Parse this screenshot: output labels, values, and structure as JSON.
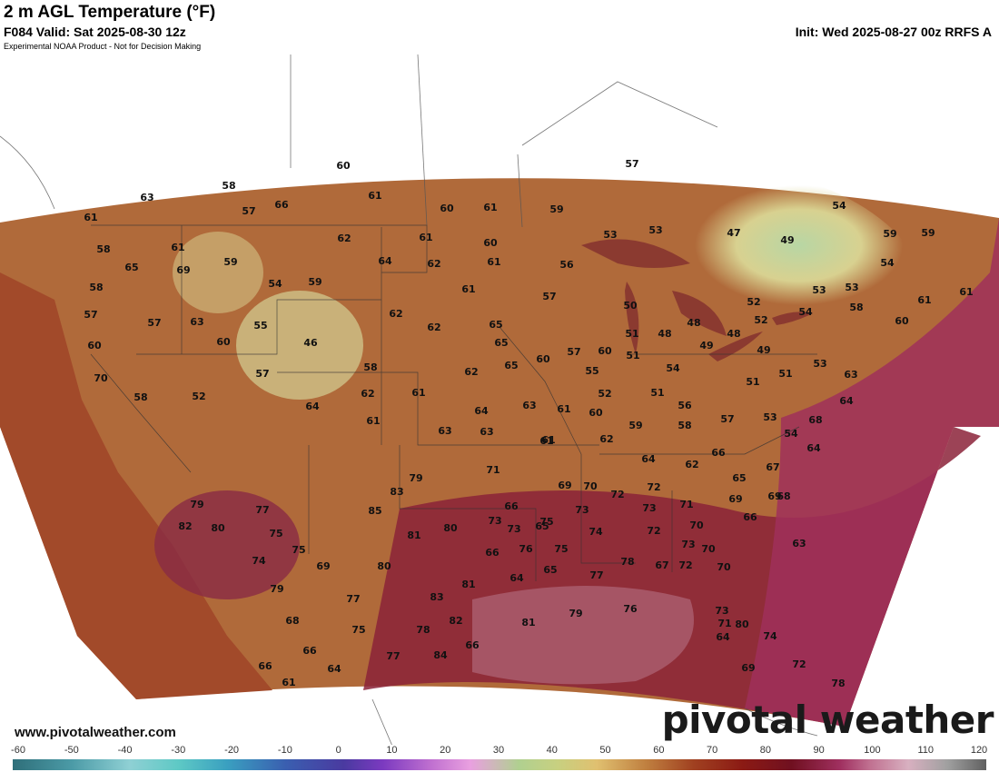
{
  "header": {
    "title": "2 m AGL Temperature (°F)",
    "valid": "F084 Valid: Sat 2025-08-30 12z",
    "init": "Init: Wed 2025-08-27 00z RRFS A",
    "disclaimer": "Experimental NOAA Product - Not for Decision Making"
  },
  "footer": {
    "url": "www.pivotalweather.com",
    "brand": "pivotal weather"
  },
  "colorbar": {
    "ticks": [
      "-60",
      "-50",
      "-40",
      "-30",
      "-20",
      "-10",
      "0",
      "10",
      "20",
      "30",
      "40",
      "50",
      "60",
      "70",
      "80",
      "90",
      "100",
      "110",
      "120"
    ]
  },
  "colors": {
    "hot": "#8b1a14",
    "warm": "#b5652a",
    "mild": "#d4b56a",
    "cool": "#c9d69a",
    "very_hot": "#a0305a"
  },
  "temps": [
    "60",
    "57",
    "58",
    "57",
    "66",
    "61",
    "60",
    "61",
    "59",
    "63",
    "61",
    "58",
    "61",
    "65",
    "69",
    "58",
    "57",
    "57",
    "63",
    "60",
    "60",
    "55",
    "59",
    "54",
    "59",
    "62",
    "64",
    "61",
    "62",
    "60",
    "61",
    "61",
    "62",
    "62",
    "65",
    "65",
    "57",
    "56",
    "53",
    "53",
    "47",
    "49",
    "54",
    "59",
    "59",
    "54",
    "53",
    "53",
    "61",
    "61",
    "60",
    "58",
    "52",
    "52",
    "54",
    "50",
    "48",
    "48",
    "48",
    "49",
    "49",
    "51",
    "51",
    "51",
    "51",
    "53",
    "55",
    "52",
    "54",
    "51",
    "56",
    "53",
    "58",
    "59",
    "61",
    "60",
    "61",
    "60",
    "63",
    "64",
    "57",
    "57",
    "54",
    "70",
    "58",
    "52",
    "46",
    "57",
    "58",
    "62",
    "61",
    "61",
    "64",
    "62",
    "63",
    "63",
    "65",
    "60",
    "62",
    "61",
    "66",
    "64",
    "62",
    "65",
    "67",
    "64",
    "68",
    "63",
    "64",
    "69",
    "68",
    "69",
    "66",
    "70",
    "71",
    "72",
    "72",
    "73",
    "72",
    "74",
    "73",
    "73",
    "73",
    "75",
    "75",
    "76",
    "77",
    "78",
    "72",
    "70",
    "71",
    "69",
    "66",
    "64",
    "65",
    "65",
    "66",
    "73",
    "71",
    "70",
    "69",
    "79",
    "83",
    "85",
    "80",
    "81",
    "79",
    "77",
    "82",
    "80",
    "74",
    "75",
    "79",
    "68",
    "66",
    "66",
    "61",
    "64",
    "75",
    "69",
    "77",
    "75",
    "80",
    "78",
    "77",
    "84",
    "83",
    "82",
    "81",
    "81",
    "79",
    "76",
    "74",
    "72",
    "78",
    "73",
    "80",
    "64",
    "67",
    "70",
    "63",
    "66"
  ]
}
